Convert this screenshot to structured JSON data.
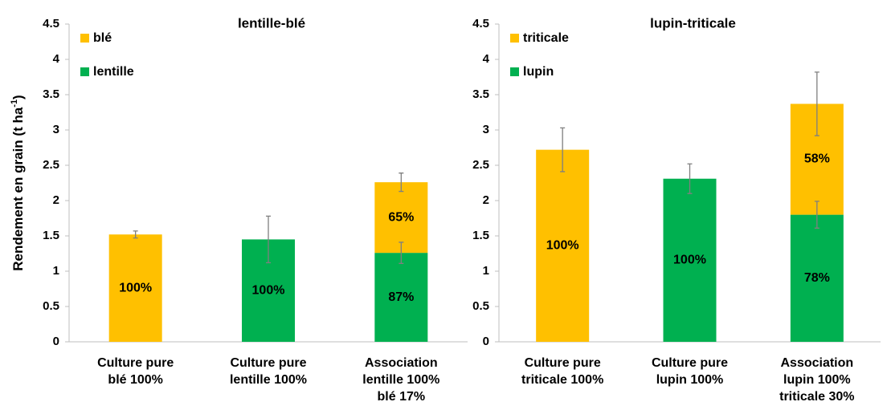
{
  "chart_data": [
    {
      "type": "stacked_bar",
      "title": "lentille-blé",
      "ylabel": "Rendement en grain (t ha",
      "ylabel_sup": "-1",
      "ylabel_end": ")",
      "categories": [
        [
          "Culture pure",
          "blé 100%"
        ],
        [
          "Culture pure",
          "lentille 100%"
        ],
        [
          "Association",
          "lentille 100%",
          "blé 17%"
        ]
      ],
      "series": [
        {
          "name": "lentille",
          "color": "#00b050",
          "values": [
            null,
            1.45,
            1.26
          ],
          "errors": [
            null,
            0.33,
            0.15
          ],
          "bar_labels": [
            null,
            "100%",
            "87%"
          ]
        },
        {
          "name": "blé",
          "color": "#ffc000",
          "values": [
            1.52,
            null,
            1.0
          ],
          "errors": [
            0.05,
            null,
            0.13
          ],
          "bar_labels": [
            "100%",
            null,
            "65%"
          ]
        }
      ],
      "ylim": [
        0,
        4.5
      ],
      "yticks": [
        0,
        0.5,
        1,
        1.5,
        2,
        2.5,
        3,
        3.5,
        4,
        4.5
      ],
      "grid": false
    },
    {
      "type": "stacked_bar",
      "title": "lupin-triticale",
      "categories": [
        [
          "Culture pure",
          "triticale 100%"
        ],
        [
          "Culture pure",
          "lupin 100%"
        ],
        [
          "Association",
          "lupin 100%",
          "triticale 30%"
        ]
      ],
      "series": [
        {
          "name": "lupin",
          "color": "#00b050",
          "values": [
            null,
            2.31,
            1.8
          ],
          "errors": [
            null,
            0.21,
            0.19
          ],
          "bar_labels": [
            null,
            "100%",
            "78%"
          ]
        },
        {
          "name": "triticale",
          "color": "#ffc000",
          "values": [
            2.72,
            null,
            1.57
          ],
          "errors": [
            0.31,
            null,
            0.45
          ],
          "bar_labels": [
            "100%",
            null,
            "58%"
          ]
        }
      ],
      "ylim": [
        0,
        4.5
      ],
      "yticks": [
        0,
        0.5,
        1,
        1.5,
        2,
        2.5,
        3,
        3.5,
        4,
        4.5
      ],
      "grid": false
    }
  ]
}
